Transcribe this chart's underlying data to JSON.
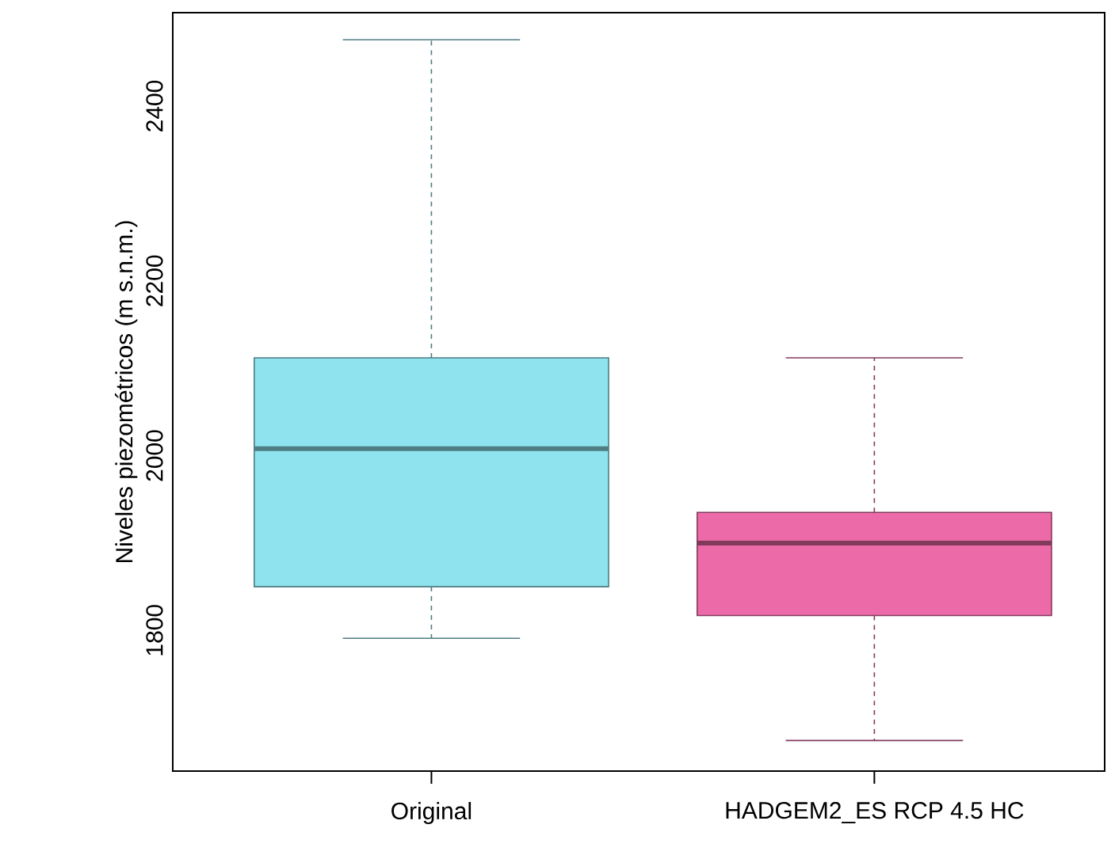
{
  "chart_data": {
    "type": "box",
    "ylabel": "Niveles piezométricos (m s.n.m.)",
    "categories": [
      "Original",
      "HADGEM2_ES RCP 4.5 HC"
    ],
    "boxes": [
      {
        "low": 1791,
        "q1": 1850,
        "median": 2008,
        "q3": 2112,
        "high": 2476
      },
      {
        "low": 1674,
        "q1": 1817,
        "median": 1900,
        "q3": 1935,
        "high": 2112
      }
    ],
    "colors": [
      "#8ee3ee",
      "#ec6aa8"
    ],
    "ylim": [
      1639,
      2507
    ],
    "yticks": [
      1800,
      2000,
      2200,
      2400
    ]
  }
}
